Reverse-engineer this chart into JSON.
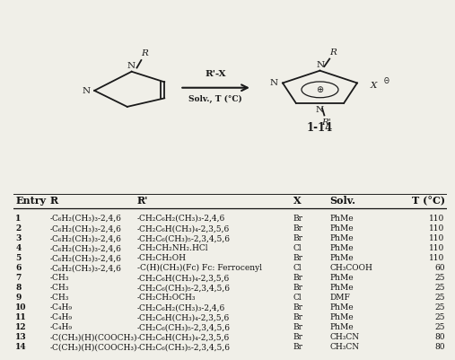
{
  "headers": [
    "Entry",
    "R",
    "R'",
    "X",
    "Solv.",
    "T (°C)"
  ],
  "rows": [
    [
      "1",
      "-C₆H₂(CH₃)₃-2,4,6",
      "-CH₂C₆H₂(CH₃)₃-2,4,6",
      "Br",
      "PhMe",
      "110"
    ],
    [
      "2",
      "-C₆H₂(CH₃)₃-2,4,6",
      "-CH₂C₆H(CH₃)₄-2,3,5,6",
      "Br",
      "PhMe",
      "110"
    ],
    [
      "3",
      "-C₆H₂(CH₃)₃-2,4,6",
      "-CH₂C₆(CH₃)₅-2,3,4,5,6",
      "Br",
      "PhMe",
      "110"
    ],
    [
      "4",
      "-C₆H₂(CH₃)₃-2,4,6",
      "-CH₂CH₂NH₂.HCl",
      "Cl",
      "PhMe",
      "110"
    ],
    [
      "5",
      "-C₆H₂(CH₃)₃-2,4,6",
      "-CH₂CH₂OH",
      "Br",
      "PhMe",
      "110"
    ],
    [
      "6",
      "-C₆H₂(CH₃)₃-2,4,6",
      "-C(H)(CH₃)(Fc) Fc: Ferrocenyl",
      "Cl",
      "CH₃COOH",
      "60"
    ],
    [
      "7",
      "-CH₃",
      "-CH₂C₆H(CH₃)₄-2,3,5,6",
      "Br",
      "PhMe",
      "25"
    ],
    [
      "8",
      "-CH₃",
      "-CH₂C₆(CH₃)₅-2,3,4,5,6",
      "Br",
      "PhMe",
      "25"
    ],
    [
      "9",
      "-CH₃",
      "-CH₂CH₂OCH₃",
      "Cl",
      "DMF",
      "25"
    ],
    [
      "10",
      "-C₄H₉",
      "-CH₂C₆H₂(CH₃)₃-2,4,6",
      "Br",
      "PhMe",
      "25"
    ],
    [
      "11",
      "-C₄H₉",
      "-CH₂C₆H(CH₃)₄-2,3,5,6",
      "Br",
      "PhMe",
      "25"
    ],
    [
      "12",
      "-C₄H₉",
      "-CH₂C₆(CH₃)₅-2,3,4,5,6",
      "Br",
      "PhMe",
      "25"
    ],
    [
      "13",
      "-C(CH₃)(H)(COOCH₃)",
      "-CH₂C₆H(CH₃)₄-2,3,5,6",
      "Br",
      "CH₃CN",
      "80"
    ],
    [
      "14",
      "-C(CH₃)(H)(COOCH₃)",
      "-CH₂C₆(CH₃)₅-2,3,4,5,6",
      "Br",
      "CH₃CN",
      "80"
    ]
  ],
  "background_color": "#f0efe8",
  "ring_color": "#1a1a1a",
  "text_color": "#111111"
}
